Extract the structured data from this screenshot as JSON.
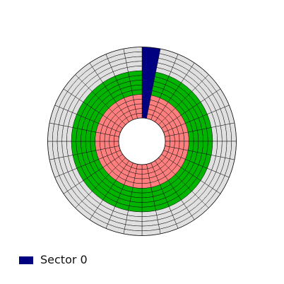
{
  "disk": {
    "sector_count": 32,
    "zones": [
      {
        "name": "inner",
        "tracks": 5,
        "color": "#ff7f7f"
      },
      {
        "name": "middle",
        "tracks": 5,
        "color": "#00b400"
      },
      {
        "name": "outer",
        "tracks": 5,
        "color": "#e0e0e0"
      }
    ],
    "highlighted_sector": {
      "index": 0,
      "color": "#000080"
    },
    "grid_color": "#111111"
  },
  "legend": {
    "label": "Sector 0",
    "color": "#000080"
  }
}
